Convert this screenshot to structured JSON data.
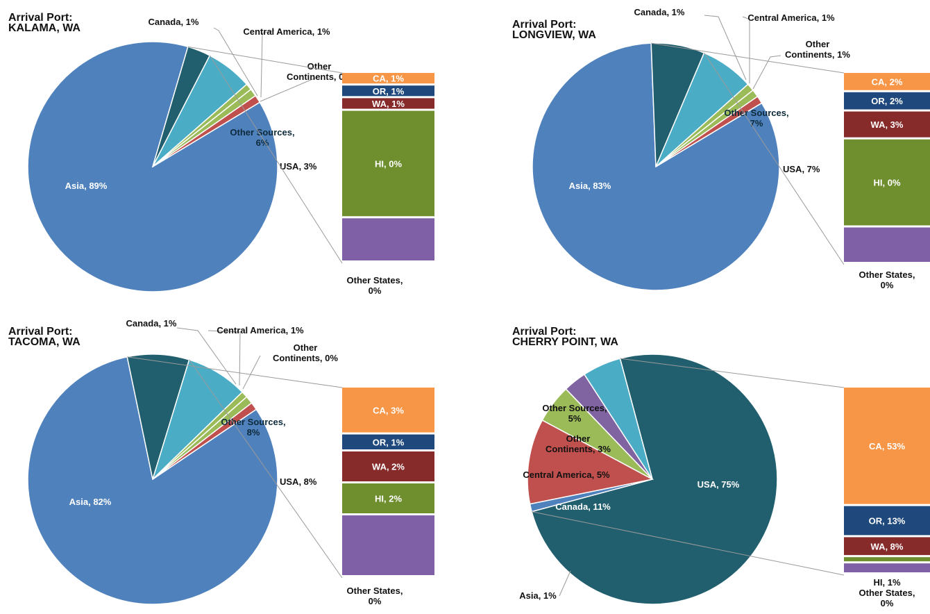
{
  "colors": {
    "Asia": "#4f81bd",
    "USA": "#215f6e",
    "Other Sources": "#4bacc6",
    "Other Continents": "#9bbb59",
    "Central America": "#9bbb59",
    "Canada": "#c0504d",
    "CA": "#f79646",
    "OR": "#1f497d",
    "WA": "#862a2a",
    "HI": "#6f8f2f",
    "Other States": "#7f60a6",
    "Other Continents Cherry": "#8064a2"
  },
  "chart_data": [
    {
      "type": "pie",
      "title": [
        "Arrival Port:",
        "KALAMA, WA"
      ],
      "slices": [
        {
          "name": "Asia",
          "value": 89,
          "label": "Asia, 89%"
        },
        {
          "name": "USA",
          "value": 3,
          "label": "USA, 3%"
        },
        {
          "name": "Other Sources",
          "value": 6,
          "label": "Other Sources, 6%"
        },
        {
          "name": "Other Continents",
          "value": 0,
          "label": "Other Continents, 0%"
        },
        {
          "name": "Central America",
          "value": 1,
          "label": "Central America, 1%"
        },
        {
          "name": "Canada",
          "value": 1,
          "label": "Canada, 1%"
        }
      ],
      "breakdown": [
        {
          "name": "CA",
          "value": 1,
          "label": "CA, 1%"
        },
        {
          "name": "OR",
          "value": 1,
          "label": "OR, 1%"
        },
        {
          "name": "WA",
          "value": 1,
          "label": "WA, 1%"
        },
        {
          "name": "HI",
          "value": 0,
          "label": "HI, 0%"
        },
        {
          "name": "Other States",
          "value": 0,
          "label": "Other States, 0%"
        }
      ]
    },
    {
      "type": "pie",
      "title": [
        "Arrival Port:",
        "LONGVIEW, WA"
      ],
      "slices": [
        {
          "name": "Asia",
          "value": 83,
          "label": "Asia, 83%"
        },
        {
          "name": "USA",
          "value": 7,
          "label": "USA, 7%"
        },
        {
          "name": "Other Sources",
          "value": 7,
          "label": "Other Sources, 7%"
        },
        {
          "name": "Other Continents",
          "value": 1,
          "label": "Other Continents, 1%"
        },
        {
          "name": "Central America",
          "value": 1,
          "label": "Central America, 1%"
        },
        {
          "name": "Canada",
          "value": 1,
          "label": "Canada, 1%"
        }
      ],
      "breakdown": [
        {
          "name": "CA",
          "value": 2,
          "label": "CA, 2%"
        },
        {
          "name": "OR",
          "value": 2,
          "label": "OR, 2%"
        },
        {
          "name": "WA",
          "value": 3,
          "label": "WA, 3%"
        },
        {
          "name": "HI",
          "value": 0,
          "label": "HI, 0%"
        },
        {
          "name": "Other States",
          "value": 0,
          "label": "Other States, 0%"
        }
      ]
    },
    {
      "type": "pie",
      "title": [
        "Arrival Port:",
        "TACOMA, WA"
      ],
      "slices": [
        {
          "name": "Asia",
          "value": 82,
          "label": "Asia, 82%"
        },
        {
          "name": "USA",
          "value": 8,
          "label": "USA, 8%"
        },
        {
          "name": "Other Sources",
          "value": 8,
          "label": "Other Sources, 8%"
        },
        {
          "name": "Other Continents",
          "value": 0,
          "label": "Other Continents, 0%"
        },
        {
          "name": "Central America",
          "value": 1,
          "label": "Central America, 1%"
        },
        {
          "name": "Canada",
          "value": 1,
          "label": "Canada, 1%"
        }
      ],
      "breakdown": [
        {
          "name": "CA",
          "value": 3,
          "label": "CA, 3%"
        },
        {
          "name": "OR",
          "value": 1,
          "label": "OR, 1%"
        },
        {
          "name": "WA",
          "value": 2,
          "label": "WA, 2%"
        },
        {
          "name": "HI",
          "value": 2,
          "label": "HI, 2%"
        },
        {
          "name": "Other States",
          "value": 0,
          "label": "Other States, 0%"
        }
      ]
    },
    {
      "type": "pie",
      "title": [
        "Arrival Port:",
        "CHERRY POINT, WA"
      ],
      "slices": [
        {
          "name": "USA",
          "value": 75,
          "label": "USA, 75%"
        },
        {
          "name": "Asia",
          "value": 1,
          "label": "Asia, 1%"
        },
        {
          "name": "Canada",
          "value": 11,
          "label": "Canada, 11%"
        },
        {
          "name": "Central America",
          "value": 5,
          "label": "Central America, 5%"
        },
        {
          "name": "Other Continents",
          "value": 3,
          "label": "Other Continents, 3%"
        },
        {
          "name": "Other Sources",
          "value": 5,
          "label": "Other Sources, 5%"
        }
      ],
      "breakdown": [
        {
          "name": "CA",
          "value": 53,
          "label": "CA, 53%"
        },
        {
          "name": "OR",
          "value": 13,
          "label": "OR, 13%"
        },
        {
          "name": "WA",
          "value": 8,
          "label": "WA, 8%"
        },
        {
          "name": "HI",
          "value": 1,
          "label": "HI, 1%"
        },
        {
          "name": "Other States",
          "value": 0,
          "label": "Other States, 0%"
        }
      ]
    }
  ]
}
